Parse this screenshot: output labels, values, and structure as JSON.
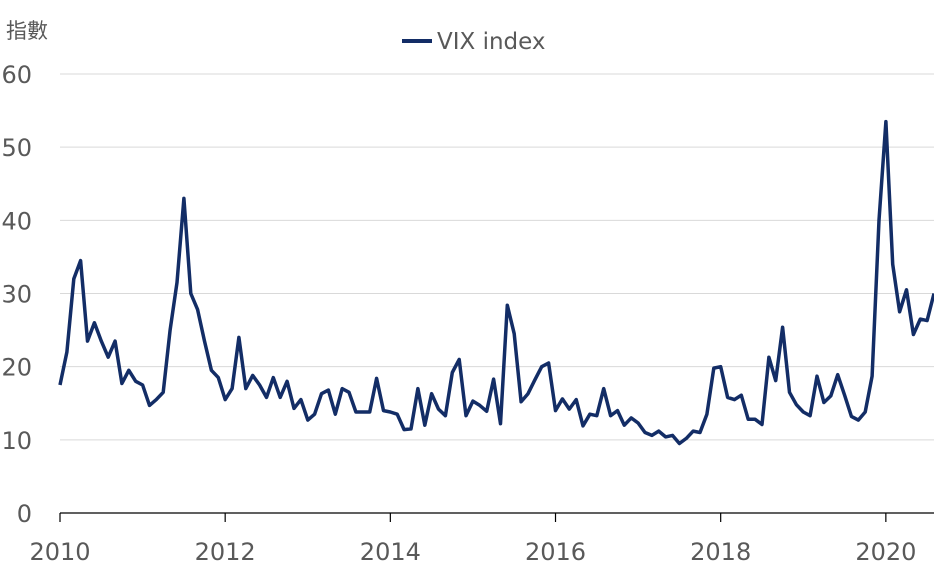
{
  "chart_data": {
    "type": "line",
    "title": "",
    "ylabel": "指數",
    "xlabel": "",
    "ylim": [
      0,
      60
    ],
    "yticks": [
      0,
      10,
      20,
      30,
      40,
      50,
      60
    ],
    "xlim": [
      2010,
      2020.583
    ],
    "xticks": [
      "2010",
      "2012",
      "2014",
      "2016",
      "2018",
      "2020"
    ],
    "xtick_values": [
      2010,
      2012,
      2014,
      2016,
      2018,
      2020
    ],
    "grid": true,
    "legend_position": "top-center",
    "frequency": "monthly",
    "start": 2010,
    "series": [
      {
        "name": "VIX index",
        "color": "#132d66",
        "values": [
          17.5,
          22,
          32,
          34.5,
          23.5,
          26,
          23.5,
          21.3,
          23.5,
          17.7,
          19.5,
          18,
          17.5,
          14.7,
          15.5,
          16.5,
          25,
          31.5,
          43,
          30,
          27.8,
          23.5,
          19.5,
          18.5,
          15.5,
          17,
          24,
          17,
          18.8,
          17.5,
          15.8,
          18.5,
          15.8,
          18,
          14.3,
          15.5,
          12.7,
          13.5,
          16.3,
          16.8,
          13.5,
          17,
          16.5,
          13.8,
          13.8,
          13.8,
          18.4,
          14,
          13.8,
          13.5,
          11.4,
          11.5,
          17,
          12,
          16.3,
          14.2,
          13.3,
          19.2,
          21,
          13.3,
          15.3,
          14.7,
          13.9,
          18.3,
          12.2,
          28.4,
          24.5,
          15.2,
          16.3,
          18.2,
          20,
          20.5,
          14,
          15.6,
          14.2,
          15.5,
          11.9,
          13.5,
          13.3,
          17,
          13.3,
          14,
          12,
          13,
          12.3,
          11,
          10.6,
          11.2,
          10.4,
          10.6,
          9.5,
          10.2,
          11.2,
          11,
          13.5,
          19.8,
          20,
          15.8,
          15.5,
          16.1,
          12.8,
          12.8,
          12.1,
          21.3,
          18.1,
          25.4,
          16.5,
          14.8,
          13.8,
          13.3,
          18.7,
          15.1,
          16,
          18.9,
          16.1,
          13.2,
          12.7,
          13.8,
          18.7,
          40,
          53.5,
          34,
          27.5,
          30.5,
          24.4,
          26.5,
          26.3,
          30
        ]
      }
    ]
  }
}
